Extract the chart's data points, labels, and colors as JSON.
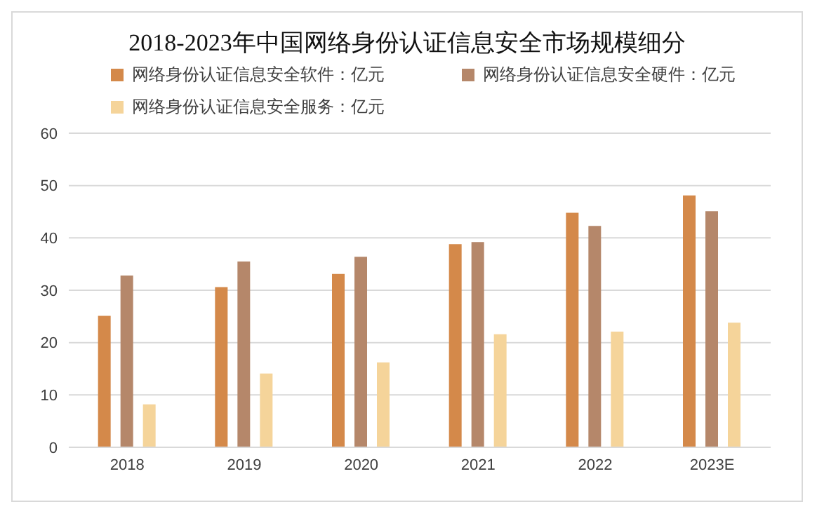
{
  "chart_data": {
    "type": "bar",
    "title": "2018-2023年中国网络身份认证信息安全市场规模细分",
    "categories": [
      "2018",
      "2019",
      "2020",
      "2021",
      "2022",
      "2023E"
    ],
    "series": [
      {
        "name": "网络身份认证信息安全软件：亿元",
        "color": "#d4894a",
        "values": [
          25.1,
          30.6,
          33.1,
          38.8,
          44.8,
          48.1
        ]
      },
      {
        "name": "网络身份认证信息安全硬件：亿元",
        "color": "#b5876a",
        "values": [
          32.8,
          35.5,
          36.4,
          39.2,
          42.3,
          45.1
        ]
      },
      {
        "name": "网络身份认证信息安全服务：亿元",
        "color": "#f5d49a",
        "values": [
          8.2,
          14.1,
          16.2,
          21.6,
          22.1,
          23.8
        ]
      }
    ],
    "ylim": [
      0,
      60
    ],
    "yticks": [
      0,
      10,
      20,
      30,
      40,
      50,
      60
    ],
    "grid": "y",
    "legend": "top left"
  }
}
